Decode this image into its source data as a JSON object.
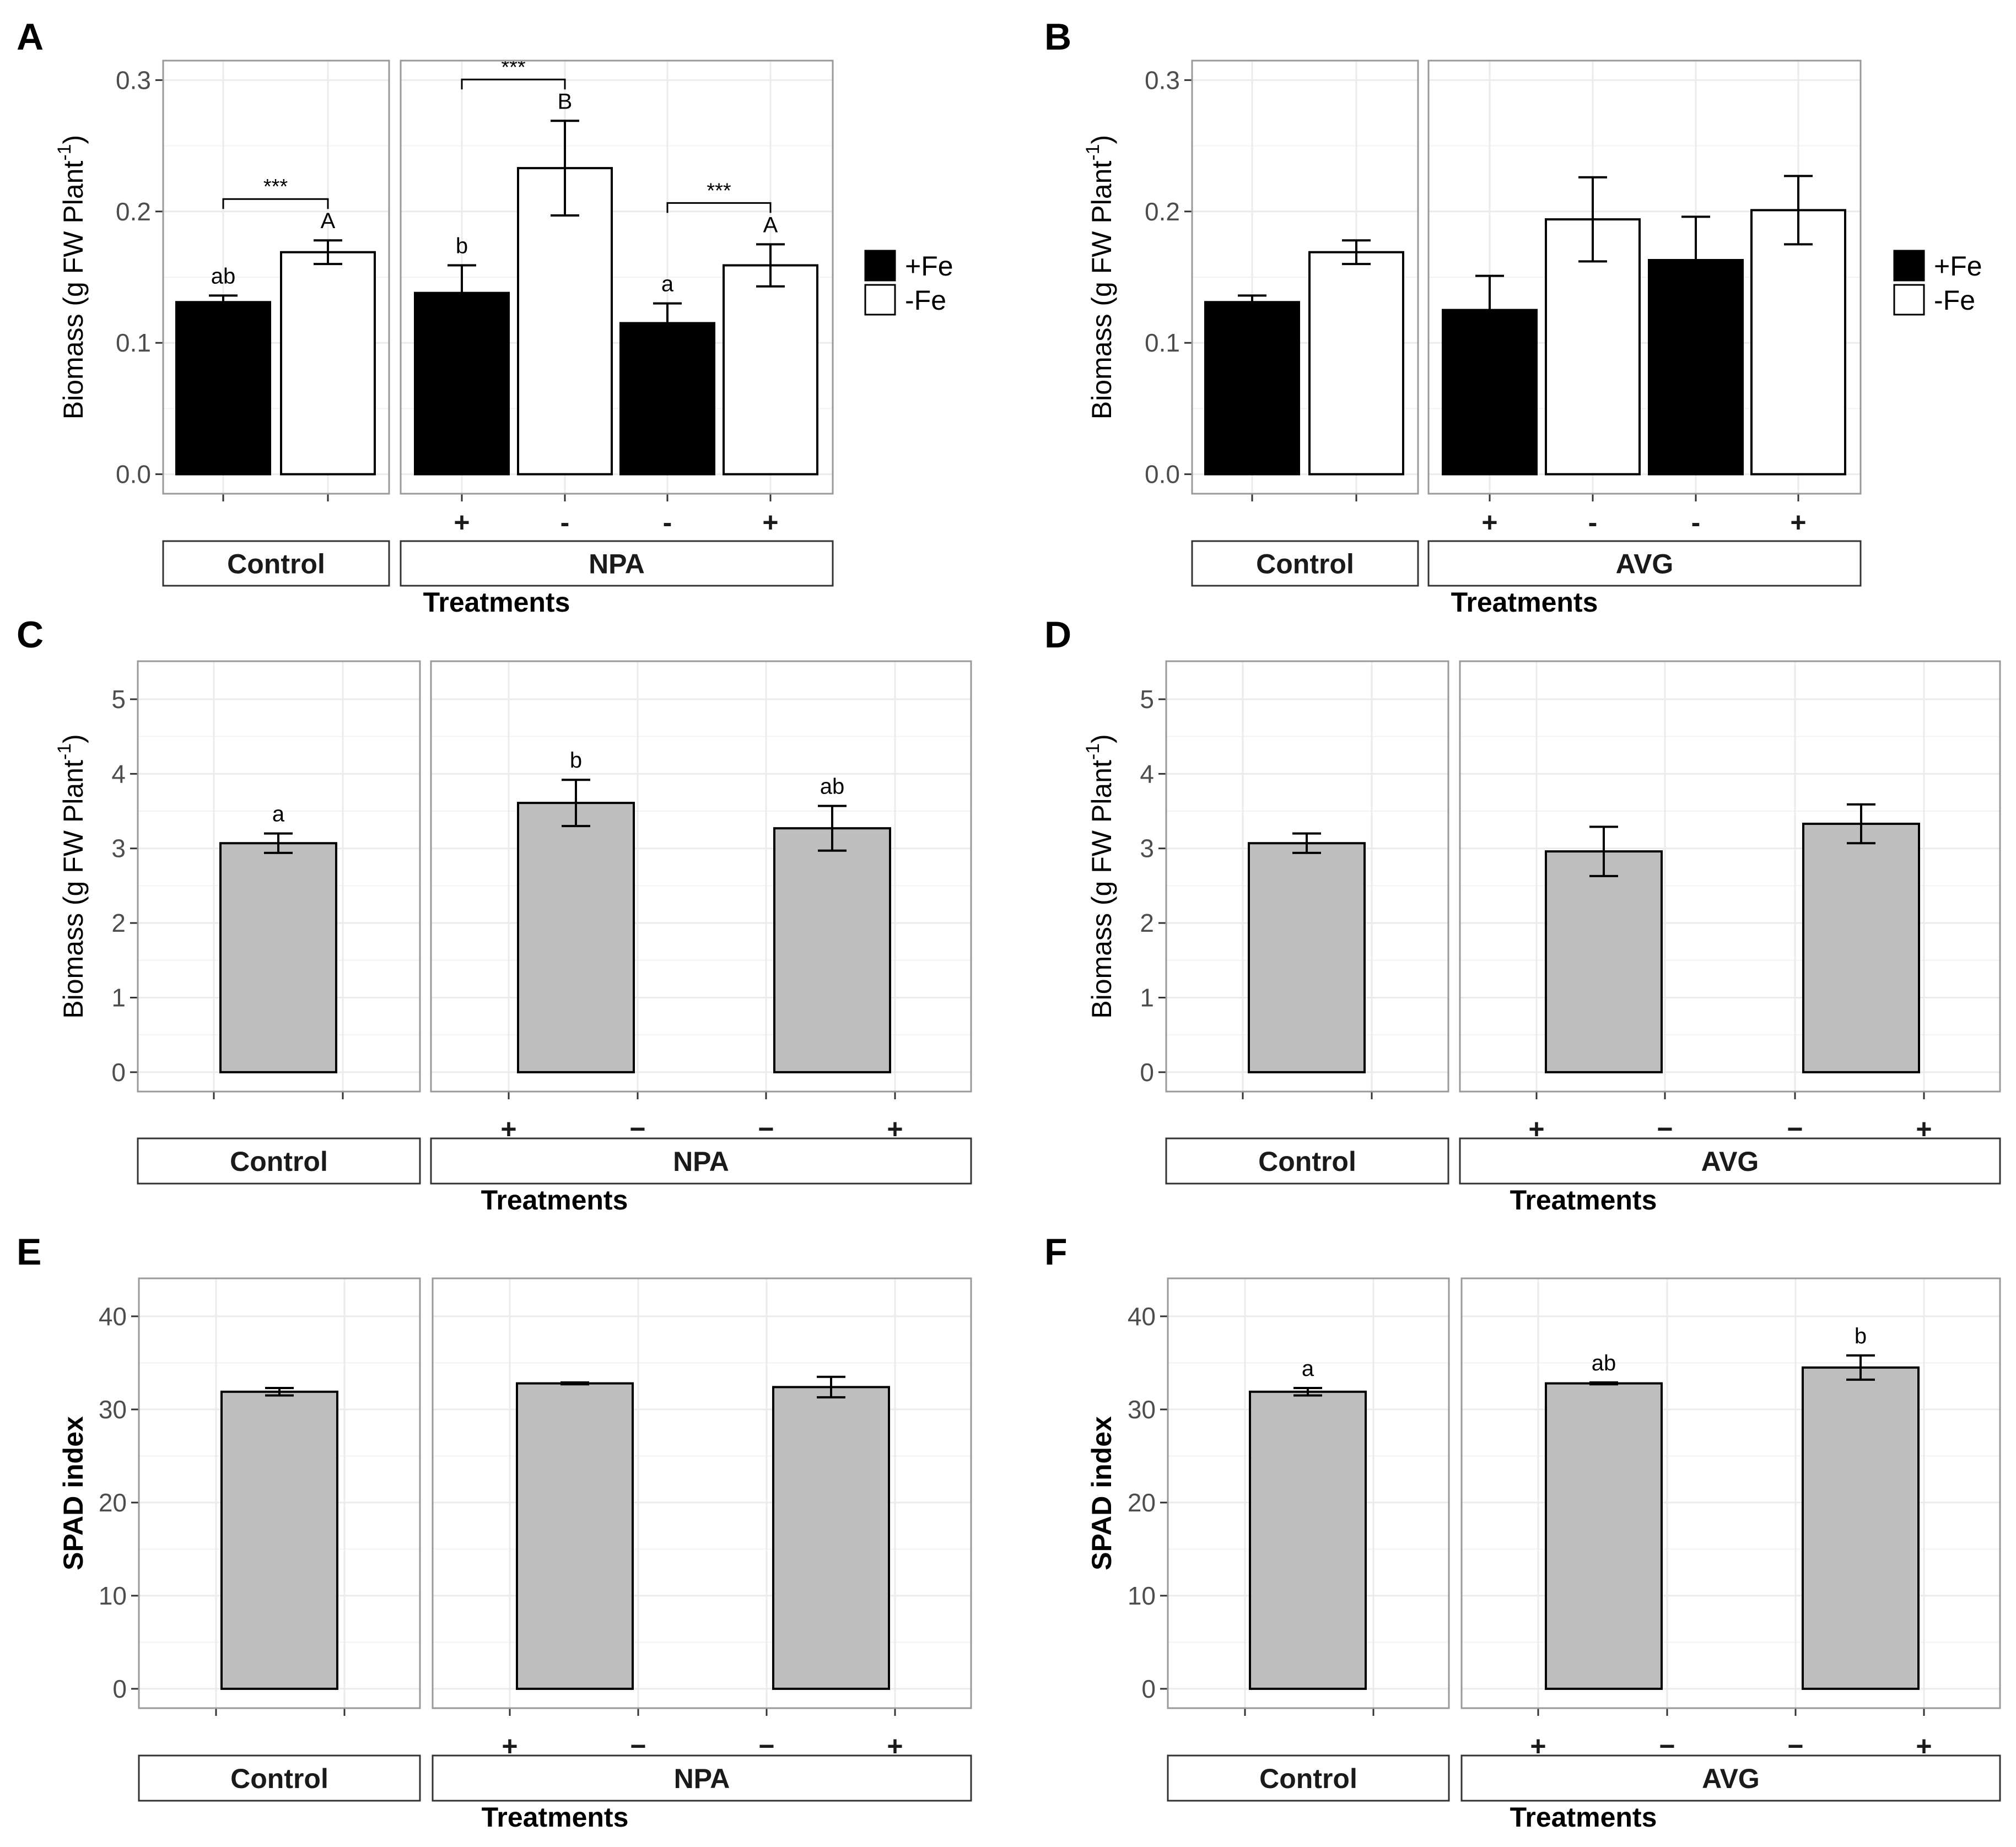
{
  "figure": {
    "axis_title_x": "Treatments",
    "colors": {
      "plus_fe": "#000000",
      "minus_fe": "#ffffff",
      "grey_bar": "#bebebe",
      "grid": "#ebebeb",
      "frame": "#999999"
    }
  },
  "legend": {
    "plus_fe": "+Fe",
    "minus_fe": "-Fe"
  },
  "chart_data": [
    {
      "panel": "A",
      "type": "bar",
      "ylabel": "Biomass (g FW Plant",
      "ylabel_sup": "-1",
      "ylabel_close": ")",
      "xlabel": "Treatments",
      "ylim": [
        0,
        0.3
      ],
      "yticks": [
        0,
        0.1,
        0.2,
        0.3
      ],
      "ytick_labels": [
        "0.0",
        "0.1",
        "0.2",
        "0.3"
      ],
      "facets": [
        {
          "label": "Control",
          "bars": [
            {
              "fe": "+Fe",
              "value": 0.131,
              "err": 0.005,
              "letter": "ab",
              "sign": ""
            },
            {
              "fe": "-Fe",
              "value": 0.169,
              "err": 0.009,
              "letter": "A",
              "sign": ""
            }
          ],
          "brackets": [
            {
              "from": 0,
              "to": 1,
              "text": "***"
            }
          ]
        },
        {
          "label": "NPA",
          "bars": [
            {
              "fe": "+Fe",
              "value": 0.138,
              "err": 0.021,
              "letter": "b",
              "sign": "+"
            },
            {
              "fe": "-Fe",
              "value": 0.233,
              "err": 0.036,
              "letter": "B",
              "sign": "-"
            },
            {
              "fe": "+Fe",
              "value": 0.115,
              "err": 0.015,
              "letter": "a",
              "sign": "-"
            },
            {
              "fe": "-Fe",
              "value": 0.159,
              "err": 0.016,
              "letter": "A",
              "sign": "+"
            }
          ],
          "brackets": [
            {
              "from": 0,
              "to": 1,
              "text": "***"
            },
            {
              "from": 2,
              "to": 3,
              "text": "***"
            }
          ]
        }
      ]
    },
    {
      "panel": "B",
      "type": "bar",
      "ylabel": "Biomass (g FW Plant",
      "ylabel_sup": "-1",
      "ylabel_close": ")",
      "xlabel": "Treatments",
      "ylim": [
        0,
        0.3
      ],
      "yticks": [
        0,
        0.1,
        0.2,
        0.3
      ],
      "ytick_labels": [
        "0.0",
        "0.1",
        "0.2",
        "0.3"
      ],
      "facets": [
        {
          "label": "Control",
          "bars": [
            {
              "fe": "+Fe",
              "value": 0.131,
              "err": 0.005,
              "letter": "",
              "sign": ""
            },
            {
              "fe": "-Fe",
              "value": 0.169,
              "err": 0.009,
              "letter": "",
              "sign": ""
            }
          ],
          "brackets": []
        },
        {
          "label": "AVG",
          "bars": [
            {
              "fe": "+Fe",
              "value": 0.125,
              "err": 0.026,
              "letter": "",
              "sign": "+"
            },
            {
              "fe": "-Fe",
              "value": 0.194,
              "err": 0.032,
              "letter": "",
              "sign": "-"
            },
            {
              "fe": "+Fe",
              "value": 0.163,
              "err": 0.033,
              "letter": "",
              "sign": "-"
            },
            {
              "fe": "-Fe",
              "value": 0.201,
              "err": 0.026,
              "letter": "",
              "sign": "+"
            }
          ],
          "brackets": []
        }
      ]
    },
    {
      "panel": "C",
      "type": "bar",
      "ylabel": "Biomass (g FW Plant",
      "ylabel_sup": "-1",
      "ylabel_close": ")",
      "xlabel": "Treatments",
      "ylim": [
        0,
        5.25
      ],
      "yticks": [
        0,
        1,
        2,
        3,
        4,
        5
      ],
      "ytick_labels": [
        "0",
        "1",
        "2",
        "3",
        "4",
        "5"
      ],
      "facets": [
        {
          "label": "Control",
          "bars": [
            {
              "fe": "grey",
              "value": 3.07,
              "err": 0.13,
              "letter": "a",
              "sign": ""
            }
          ],
          "brackets": []
        },
        {
          "label": "NPA",
          "bars": [
            {
              "fe": "grey",
              "value": 3.61,
              "err": 0.31,
              "letter": "b",
              "sign": "+",
              "sign2": "−"
            },
            {
              "fe": "grey",
              "value": 3.27,
              "err": 0.3,
              "letter": "ab",
              "sign": "−",
              "sign2": "+"
            }
          ],
          "brackets": []
        }
      ]
    },
    {
      "panel": "D",
      "type": "bar",
      "ylabel": "Biomass (g FW Plant",
      "ylabel_sup": "-1",
      "ylabel_close": ")",
      "xlabel": "Treatments",
      "ylim": [
        0,
        5.25
      ],
      "yticks": [
        0,
        1,
        2,
        3,
        4,
        5
      ],
      "ytick_labels": [
        "0",
        "1",
        "2",
        "3",
        "4",
        "5"
      ],
      "facets": [
        {
          "label": "Control",
          "bars": [
            {
              "fe": "grey",
              "value": 3.07,
              "err": 0.13,
              "letter": "",
              "sign": ""
            }
          ],
          "brackets": []
        },
        {
          "label": "AVG",
          "bars": [
            {
              "fe": "grey",
              "value": 2.96,
              "err": 0.33,
              "letter": "",
              "sign": "+",
              "sign2": "−"
            },
            {
              "fe": "grey",
              "value": 3.33,
              "err": 0.26,
              "letter": "",
              "sign": "−",
              "sign2": "+"
            }
          ],
          "brackets": []
        }
      ]
    },
    {
      "panel": "E",
      "type": "bar",
      "ylabel": "SPAD index",
      "ylabel_sup": "",
      "ylabel_close": "",
      "xlabel": "Treatments",
      "ylim": [
        0,
        42
      ],
      "yticks": [
        0,
        10,
        20,
        30,
        40
      ],
      "ytick_labels": [
        "0",
        "10",
        "20",
        "30",
        "40"
      ],
      "facets": [
        {
          "label": "Control",
          "bars": [
            {
              "fe": "grey",
              "value": 31.9,
              "err": 0.4,
              "letter": "",
              "sign": ""
            }
          ],
          "brackets": []
        },
        {
          "label": "NPA",
          "bars": [
            {
              "fe": "grey",
              "value": 32.8,
              "err": 0.1,
              "letter": "",
              "sign": "+",
              "sign2": "−"
            },
            {
              "fe": "grey",
              "value": 32.4,
              "err": 1.1,
              "letter": "",
              "sign": "−",
              "sign2": "+"
            }
          ],
          "brackets": []
        }
      ]
    },
    {
      "panel": "F",
      "type": "bar",
      "ylabel": "SPAD index",
      "ylabel_sup": "",
      "ylabel_close": "",
      "xlabel": "Treatments",
      "ylim": [
        0,
        42
      ],
      "yticks": [
        0,
        10,
        20,
        30,
        40
      ],
      "ytick_labels": [
        "0",
        "10",
        "20",
        "30",
        "40"
      ],
      "facets": [
        {
          "label": "Control",
          "bars": [
            {
              "fe": "grey",
              "value": 31.9,
              "err": 0.4,
              "letter": "a",
              "sign": ""
            }
          ],
          "brackets": []
        },
        {
          "label": "AVG",
          "bars": [
            {
              "fe": "grey",
              "value": 32.8,
              "err": 0.1,
              "letter": "ab",
              "sign": "+",
              "sign2": "−"
            },
            {
              "fe": "grey",
              "value": 34.5,
              "err": 1.3,
              "letter": "b",
              "sign": "−",
              "sign2": "+"
            }
          ],
          "brackets": []
        }
      ]
    }
  ]
}
